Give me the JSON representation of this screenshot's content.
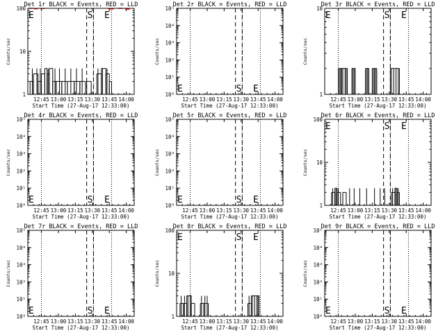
{
  "figure": {
    "background": "#ffffff",
    "ink": "#000000",
    "lld_color": "#ff0000",
    "xlabel": "Start Time (27-Aug-17 12:33:00)",
    "ylabel": "Counts/sec",
    "x_ticks": [
      "12:45",
      "13:00",
      "13:15",
      "13:30",
      "13:45",
      "14:00"
    ]
  },
  "chart_data": [
    {
      "type": "line",
      "title": "Det 1r BLACK = Events, RED = LLD",
      "ytype": "log",
      "ylim": [
        1,
        100
      ],
      "yticks": [
        "1",
        "10",
        "100"
      ],
      "xlim_min": [
        0,
        94
      ],
      "dotted_lines_min": [
        12,
        58,
        74
      ],
      "dashed_lines_min": [
        52,
        58
      ],
      "S_min": 55,
      "E_min": 70,
      "marker_vpos": "top",
      "events_segments": [
        [
          2,
          5,
          2
        ],
        [
          5,
          9,
          3
        ],
        [
          9,
          12,
          2
        ],
        [
          12,
          15,
          3
        ],
        [
          15,
          17,
          4
        ],
        [
          17,
          19,
          3
        ],
        [
          19,
          22,
          4
        ],
        [
          22,
          25,
          2
        ],
        [
          25,
          30,
          2
        ],
        [
          30,
          35,
          2
        ],
        [
          35,
          41,
          2
        ],
        [
          41,
          46,
          2
        ],
        [
          46,
          51,
          2
        ],
        [
          52,
          56,
          2
        ],
        [
          61,
          65,
          3
        ],
        [
          65,
          69,
          4
        ],
        [
          69,
          72,
          3
        ],
        [
          72,
          74,
          2
        ]
      ],
      "events_spikes_min": [
        4,
        8,
        11,
        18,
        24,
        28,
        33,
        38,
        43,
        48,
        62,
        66,
        70
      ],
      "lld_segments": [
        [
          1,
          4,
          100
        ],
        [
          5,
          9,
          98
        ],
        [
          11,
          15,
          99
        ],
        [
          71,
          76,
          97
        ],
        [
          80,
          84,
          100
        ],
        [
          86,
          90,
          96
        ]
      ]
    },
    {
      "type": "line",
      "title": "Det 2r BLACK = Events, RED = LLD",
      "ytype": "log",
      "ylim": [
        1,
        100000
      ],
      "yticks": [
        "10⁰",
        "10¹",
        "10²",
        "10³",
        "10⁴",
        "10⁵"
      ],
      "xlim_min": [
        0,
        94
      ],
      "dotted_lines_min": [
        12,
        58,
        74
      ],
      "dashed_lines_min": [
        52,
        58
      ],
      "S_min": 55,
      "E_min": 70,
      "marker_vpos": "bottom",
      "events_segments": [],
      "events_spikes_min": [],
      "lld_segments": []
    },
    {
      "type": "line",
      "title": "Det 3r BLACK = Events, RED = LLD",
      "ytype": "log",
      "ylim": [
        1,
        10
      ],
      "yticks": [
        "1",
        "10"
      ],
      "xlim_min": [
        0,
        94
      ],
      "dotted_lines_min": [
        12,
        58,
        74
      ],
      "dashed_lines_min": [
        52,
        58
      ],
      "S_min": 55,
      "E_min": 70,
      "marker_vpos": "top",
      "events_segments": [
        [
          12,
          15,
          2
        ],
        [
          15,
          20,
          2
        ],
        [
          24,
          27,
          2
        ],
        [
          36,
          39,
          2
        ],
        [
          42,
          46,
          2
        ],
        [
          58,
          66,
          2
        ]
      ],
      "events_spikes_min": [
        13,
        14,
        16,
        18,
        19,
        25,
        26,
        37,
        38,
        43,
        44,
        45,
        59,
        61,
        63,
        65
      ],
      "lld_segments": []
    },
    {
      "type": "line",
      "title": "Det 4r BLACK = Events, RED = LLD",
      "ytype": "log",
      "ylim": [
        1,
        100000
      ],
      "yticks": [
        "10⁰",
        "10¹",
        "10²",
        "10³",
        "10⁴",
        "10⁵"
      ],
      "xlim_min": [
        0,
        94
      ],
      "dotted_lines_min": [
        12,
        58,
        74
      ],
      "dashed_lines_min": [
        52,
        58
      ],
      "S_min": 55,
      "E_min": 70,
      "marker_vpos": "bottom",
      "events_segments": [],
      "events_spikes_min": [],
      "lld_segments": []
    },
    {
      "type": "line",
      "title": "Det 5r BLACK = Events, RED = LLD",
      "ytype": "log",
      "ylim": [
        1,
        100000
      ],
      "yticks": [
        "10⁰",
        "10¹",
        "10²",
        "10³",
        "10⁴",
        "10⁵"
      ],
      "xlim_min": [
        0,
        94
      ],
      "dotted_lines_min": [
        12,
        58,
        74
      ],
      "dashed_lines_min": [
        52,
        58
      ],
      "S_min": 55,
      "E_min": 70,
      "marker_vpos": "bottom",
      "events_segments": [],
      "events_spikes_min": [],
      "lld_segments": []
    },
    {
      "type": "line",
      "title": "Det 6r BLACK = Events, RED = LLD",
      "ytype": "log",
      "ylim": [
        1,
        100
      ],
      "yticks": [
        "1",
        "10",
        "100"
      ],
      "xlim_min": [
        0,
        94
      ],
      "dotted_lines_min": [
        12,
        58,
        74
      ],
      "dashed_lines_min": [
        52,
        58
      ],
      "S_min": 55,
      "E_min": 70,
      "marker_vpos": "top",
      "events_segments": [
        [
          6,
          9,
          2
        ],
        [
          9,
          11,
          2.5
        ],
        [
          11,
          14,
          2
        ],
        [
          16,
          19,
          2
        ],
        [
          59,
          62,
          2
        ],
        [
          62,
          64,
          2.5
        ],
        [
          64,
          66,
          2
        ]
      ],
      "events_spikes_min": [
        7,
        10,
        12,
        22,
        26,
        31,
        37,
        44,
        49,
        53,
        60,
        63,
        65
      ],
      "lld_segments": []
    },
    {
      "type": "line",
      "title": "Det 7r BLACK = Events, RED = LLD",
      "ytype": "log",
      "ylim": [
        1,
        100000
      ],
      "yticks": [
        "10⁰",
        "10¹",
        "10²",
        "10³",
        "10⁴",
        "10⁵"
      ],
      "xlim_min": [
        0,
        94
      ],
      "dotted_lines_min": [
        12,
        58,
        74
      ],
      "dashed_lines_min": [
        52,
        58
      ],
      "S_min": 55,
      "E_min": 70,
      "marker_vpos": "bottom",
      "events_segments": [],
      "events_spikes_min": [],
      "lld_segments": []
    },
    {
      "type": "line",
      "title": "Det 8r BLACK = Events, RED = LLD",
      "ytype": "log",
      "ylim": [
        1,
        100
      ],
      "yticks": [
        "1",
        "10",
        "100"
      ],
      "xlim_min": [
        0,
        94
      ],
      "dotted_lines_min": [
        12,
        58,
        74
      ],
      "dashed_lines_min": [
        52,
        58
      ],
      "S_min": 55,
      "E_min": 70,
      "marker_vpos": "top",
      "events_segments": [
        [
          3,
          6,
          2
        ],
        [
          6,
          9,
          2
        ],
        [
          9,
          13,
          3
        ],
        [
          13,
          16,
          2
        ],
        [
          21,
          24,
          2
        ],
        [
          24,
          28,
          2
        ],
        [
          63,
          66,
          2
        ],
        [
          66,
          71,
          3
        ],
        [
          71,
          73,
          3
        ]
      ],
      "events_spikes_min": [
        4,
        7,
        10,
        12,
        22,
        25,
        27,
        64,
        67,
        69,
        72
      ],
      "lld_segments": []
    },
    {
      "type": "line",
      "title": "Det 9r BLACK = Events, RED = LLD",
      "ytype": "log",
      "ylim": [
        1,
        100000
      ],
      "yticks": [
        "10⁰",
        "10¹",
        "10²",
        "10³",
        "10⁴",
        "10⁵"
      ],
      "xlim_min": [
        0,
        94
      ],
      "dotted_lines_min": [
        12,
        58,
        74
      ],
      "dashed_lines_min": [
        52,
        58
      ],
      "S_min": 55,
      "E_min": 70,
      "marker_vpos": "bottom",
      "events_segments": [],
      "events_spikes_min": [],
      "lld_segments": []
    }
  ]
}
